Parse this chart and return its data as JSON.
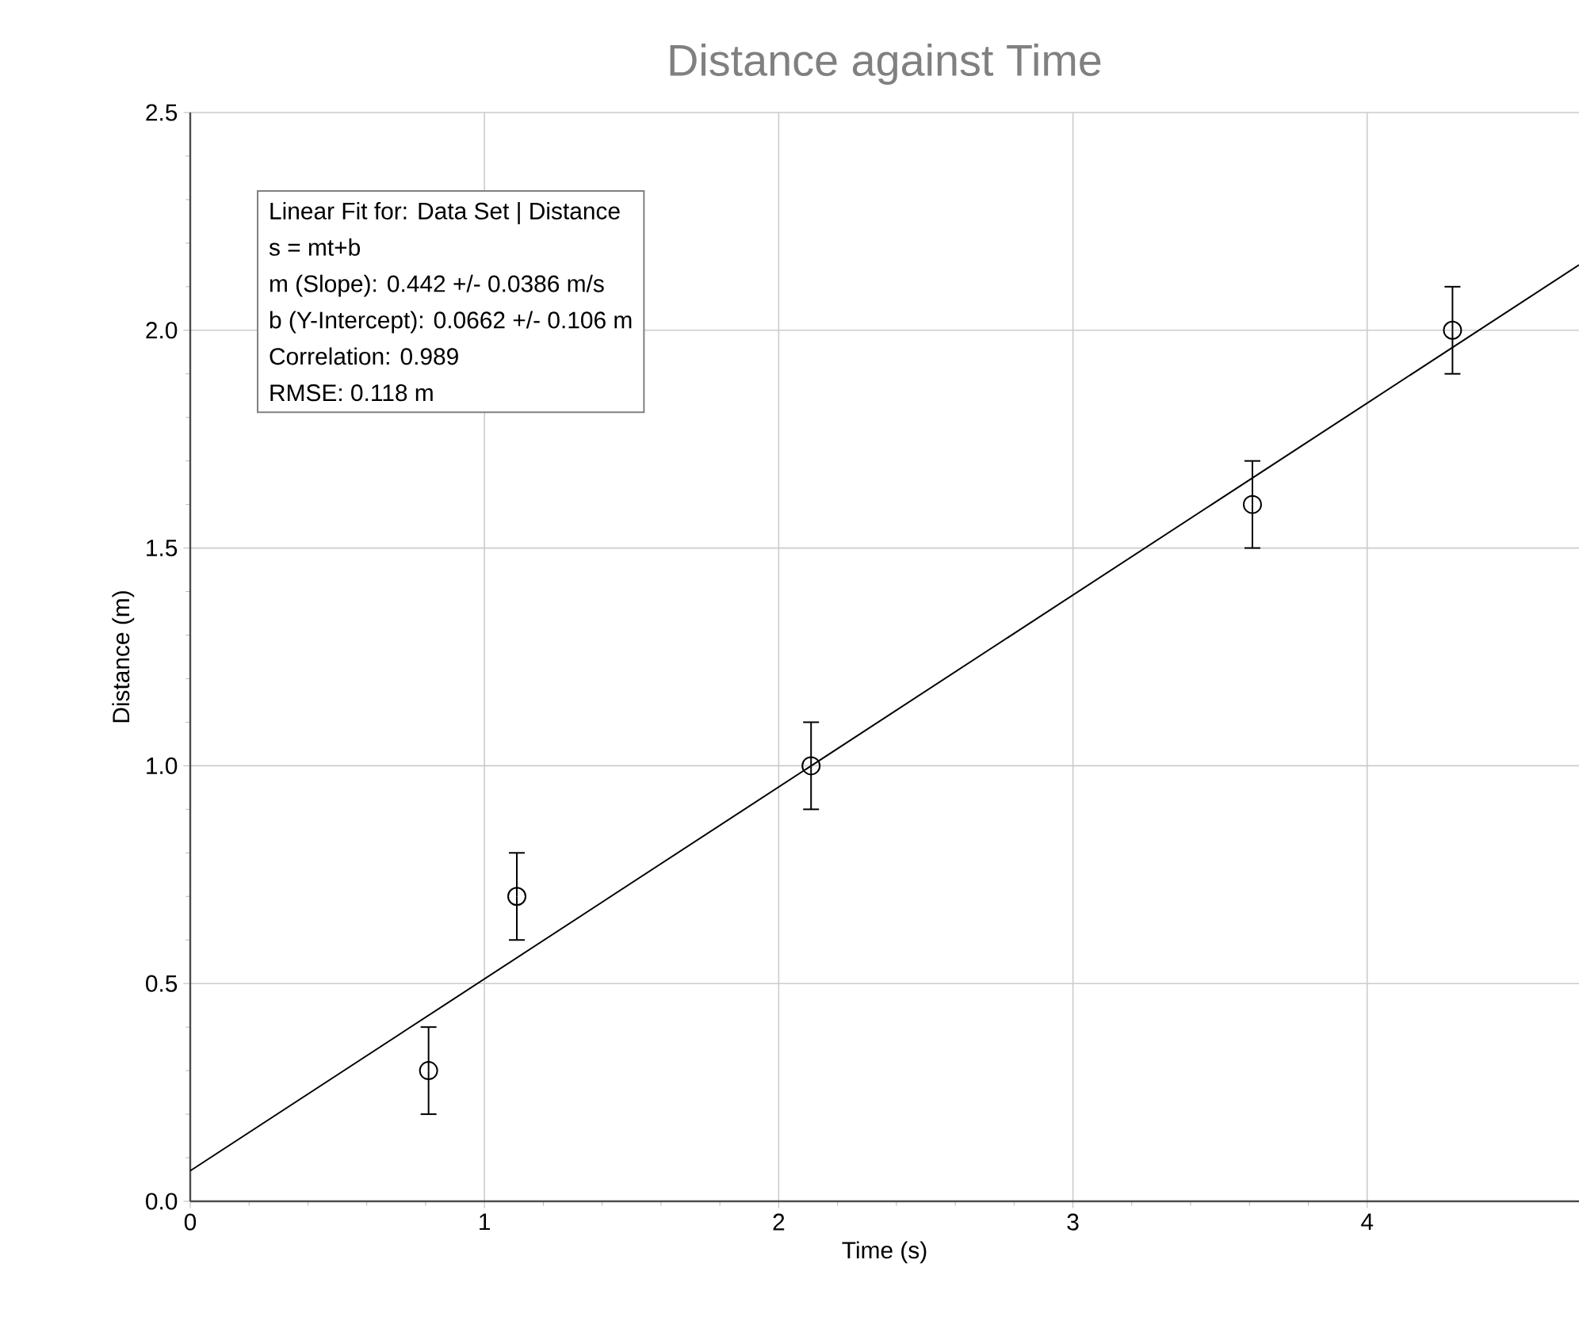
{
  "chart_data": {
    "type": "scatter",
    "title": "Distance against Time",
    "xlabel": "Time (s)",
    "ylabel": "Distance (m)",
    "xlim": [
      0,
      4.72
    ],
    "ylim": [
      0,
      2.5
    ],
    "xticks": [
      0,
      1,
      2,
      3,
      4
    ],
    "yticks": [
      {
        "value": 0,
        "label": "0.0"
      },
      0.5,
      {
        "value": 1,
        "label": "1.0"
      },
      1.5,
      {
        "value": 2,
        "label": "2.0"
      },
      2.5
    ],
    "grid": true,
    "series": [
      {
        "marker": "circle",
        "color": "#000000",
        "x": [
          0.81,
          1.11,
          2.11,
          3.61,
          4.29
        ],
        "values": [
          0.3,
          0.7,
          1.0,
          1.6,
          2.0
        ],
        "errors": [
          0.1,
          0.1,
          0.1,
          0.1,
          0.1
        ]
      },
      {
        "type": "line",
        "marker": "none",
        "color": "#000000",
        "x": [
          0,
          4.72
        ],
        "values": [
          0.07,
          2.15
        ]
      }
    ],
    "annotations": [
      "Linear Fit for: Data Set | Distance",
      "s = mt+b",
      "m (Slope): 0.442 +/- 0.0386 m/s",
      "b (Y-Intercept): 0.0662 +/- 0.106 m",
      "Correlation: 0.989",
      "RMSE: 0.118 m"
    ]
  }
}
